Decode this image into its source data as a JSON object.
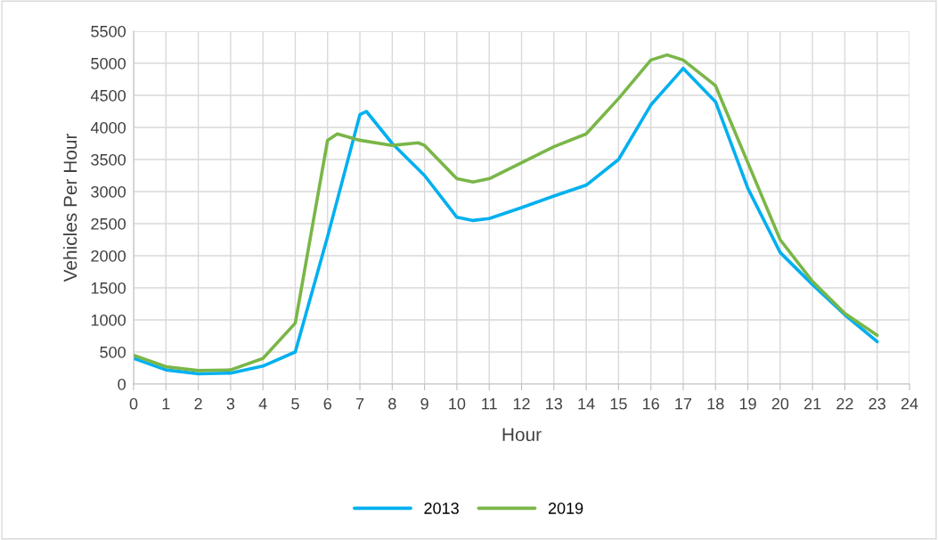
{
  "chart_data": {
    "type": "line",
    "xlabel": "Hour",
    "ylabel": "Vehicles Per Hour",
    "series": [
      {
        "name": "2013",
        "color": "#00b0f0",
        "x": [
          0,
          1,
          2,
          3,
          4,
          5,
          6,
          7,
          7.2,
          8,
          9,
          10,
          10.5,
          11,
          12,
          13,
          14,
          15,
          16,
          17,
          18,
          19,
          20,
          21,
          22,
          23
        ],
        "values": [
          400,
          220,
          160,
          170,
          280,
          500,
          2300,
          4200,
          4250,
          3750,
          3250,
          2600,
          2550,
          2580,
          2750,
          2930,
          3100,
          3500,
          4350,
          4920,
          4400,
          3050,
          2050,
          1550,
          1080,
          660
        ]
      },
      {
        "name": "2019",
        "color": "#7ab648",
        "x": [
          0,
          1,
          2,
          3,
          4,
          5,
          6,
          6.3,
          7,
          8,
          8.8,
          9,
          10,
          10.5,
          11,
          12,
          13,
          14,
          15,
          16,
          16.5,
          17,
          18,
          19,
          20,
          21,
          22,
          23
        ],
        "values": [
          450,
          270,
          210,
          220,
          400,
          950,
          3800,
          3900,
          3800,
          3720,
          3760,
          3720,
          3200,
          3150,
          3200,
          3450,
          3700,
          3900,
          4450,
          5050,
          5130,
          5050,
          4650,
          3450,
          2250,
          1600,
          1100,
          760
        ]
      }
    ],
    "xlim": [
      0,
      24
    ],
    "xticks": [
      0,
      1,
      2,
      3,
      4,
      5,
      6,
      7,
      8,
      9,
      10,
      11,
      12,
      13,
      14,
      15,
      16,
      17,
      18,
      19,
      20,
      21,
      22,
      23,
      24
    ],
    "ylim": [
      0,
      5500
    ],
    "yticks": [
      0,
      500,
      1000,
      1500,
      2000,
      2500,
      3000,
      3500,
      4000,
      4500,
      5000,
      5500
    ],
    "grid": true,
    "legend": "bottom",
    "marker": "none",
    "line_style": "solid"
  }
}
